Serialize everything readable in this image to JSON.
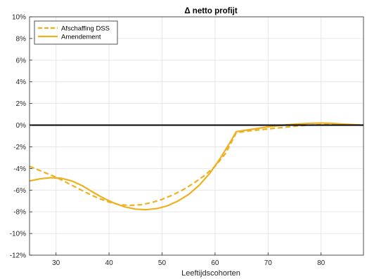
{
  "chart_data": {
    "type": "line",
    "title": "Δ netto profijt",
    "xlabel": "Leeftijdscohorten",
    "ylabel": "",
    "xlim": [
      25,
      88
    ],
    "ylim": [
      -12,
      10
    ],
    "xticks": [
      30,
      40,
      50,
      60,
      70,
      80
    ],
    "yticks": [
      -12,
      -10,
      -8,
      -6,
      -4,
      -2,
      0,
      2,
      4,
      6,
      8,
      10
    ],
    "ytick_suffix": "%",
    "grid": true,
    "legend_position": "top-left",
    "zero_line": true,
    "colors": {
      "series": "#EDB120",
      "zero_line": "#000000",
      "grid": "#e6e6e6",
      "axis": "#262626"
    },
    "series": [
      {
        "name": "Afschaffing DSS",
        "style": "dashed",
        "x": [
          25,
          28,
          30,
          32,
          34,
          36,
          38,
          40,
          42,
          44,
          46,
          48,
          50,
          52,
          54,
          56,
          58,
          60,
          62,
          64,
          66,
          68,
          70,
          72,
          74,
          76,
          78,
          80,
          82,
          84,
          86,
          88
        ],
        "y": [
          -3.8,
          -4.4,
          -4.8,
          -5.3,
          -5.8,
          -6.3,
          -6.75,
          -7.1,
          -7.35,
          -7.4,
          -7.35,
          -7.15,
          -6.85,
          -6.45,
          -5.95,
          -5.35,
          -4.65,
          -3.8,
          -2.6,
          -0.7,
          -0.55,
          -0.45,
          -0.35,
          -0.25,
          -0.15,
          -0.05,
          0.0,
          0.05,
          0.05,
          0.05,
          0.03,
          0.0
        ]
      },
      {
        "name": "Amendement",
        "style": "solid",
        "x": [
          25,
          27,
          29,
          31,
          33,
          35,
          37,
          39,
          41,
          43,
          45,
          47,
          49,
          51,
          53,
          55,
          57,
          59,
          61,
          63,
          64,
          66,
          68,
          70,
          72,
          74,
          76,
          78,
          80,
          82,
          84,
          86,
          88
        ],
        "y": [
          -5.15,
          -4.95,
          -4.85,
          -4.9,
          -5.15,
          -5.6,
          -6.2,
          -6.75,
          -7.2,
          -7.55,
          -7.75,
          -7.8,
          -7.7,
          -7.45,
          -7.0,
          -6.4,
          -5.55,
          -4.45,
          -3.05,
          -1.45,
          -0.6,
          -0.45,
          -0.3,
          -0.15,
          -0.05,
          0.05,
          0.12,
          0.17,
          0.2,
          0.17,
          0.1,
          0.05,
          0.0
        ]
      }
    ]
  }
}
